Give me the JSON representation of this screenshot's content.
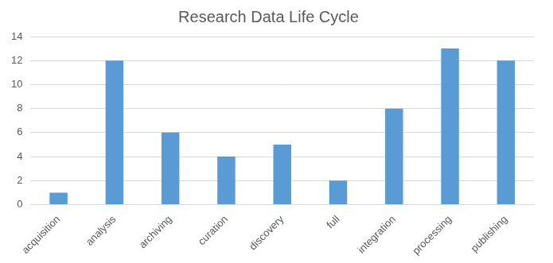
{
  "chart_data": {
    "type": "bar",
    "title": "Research Data Life Cycle",
    "categories": [
      "acquisition",
      "analysis",
      "archiving",
      "curation",
      "discovery",
      "full",
      "integration",
      "processing",
      "publishing"
    ],
    "values": [
      1,
      12,
      6,
      4,
      5,
      2,
      8,
      13,
      12
    ],
    "color": "#5b9bd5",
    "ylim": [
      0,
      14
    ],
    "yticks": [
      0,
      2,
      4,
      6,
      8,
      10,
      12,
      14
    ],
    "grid": true
  }
}
